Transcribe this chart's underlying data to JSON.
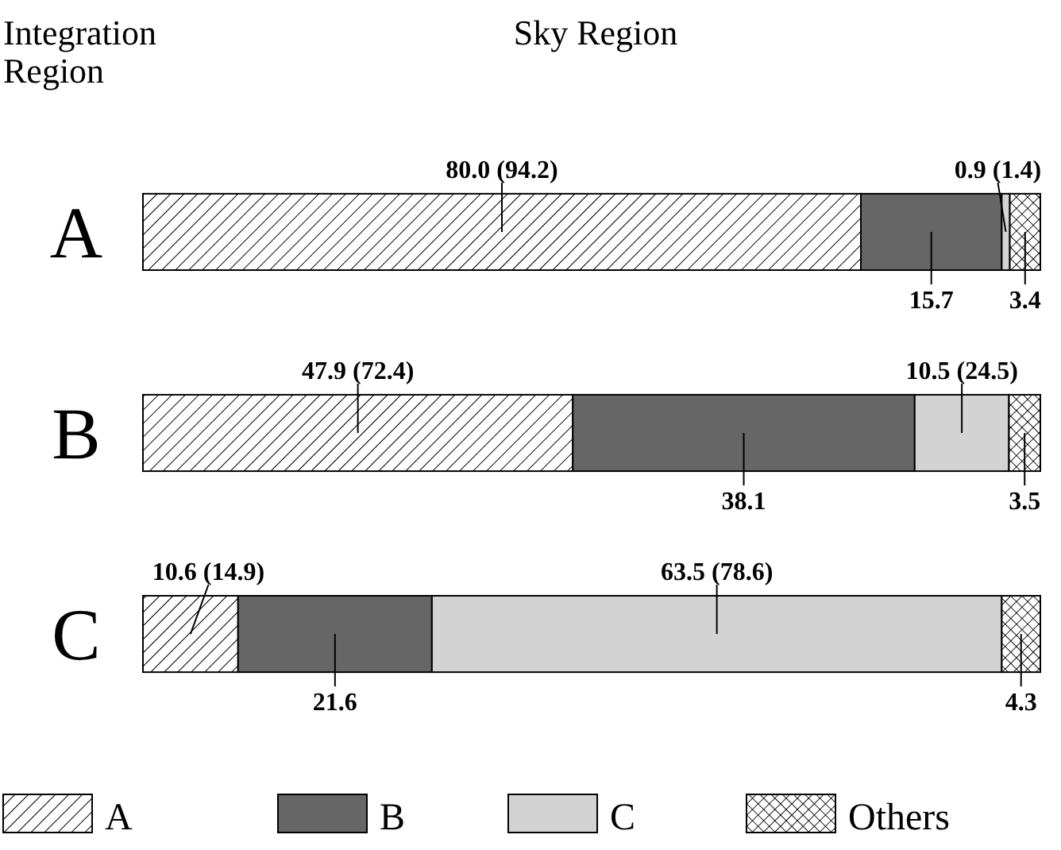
{
  "chart_data": {
    "type": "bar",
    "orientation": "horizontal",
    "stacked": true,
    "title": "Sky Region",
    "ylabel": "Integration Region",
    "categories": [
      "A",
      "B",
      "C"
    ],
    "xlim": [
      0,
      100
    ],
    "tick_labels": "y",
    "legend": "bottom",
    "series": [
      {
        "name": "A",
        "color": "#000000",
        "values": [
          80.0,
          47.9,
          10.6
        ],
        "value_labels": [
          "80.0 (94.2)",
          "47.9 (72.4)",
          "10.6 (14.9)"
        ]
      },
      {
        "name": "B",
        "color": "#666666",
        "values": [
          15.7,
          38.1,
          21.6
        ],
        "value_labels": [
          "15.7",
          "38.1",
          "21.6"
        ]
      },
      {
        "name": "C",
        "color": "#d3d3d3",
        "values": [
          0.9,
          10.5,
          63.5
        ],
        "value_labels": [
          "0.9 (1.4)",
          "10.5 (24.5)",
          "63.5 (78.6)"
        ]
      },
      {
        "name": "Others",
        "color": "#000000",
        "values": [
          3.4,
          3.5,
          4.3
        ],
        "value_labels": [
          "3.4",
          "3.5",
          "4.3"
        ]
      }
    ]
  }
}
